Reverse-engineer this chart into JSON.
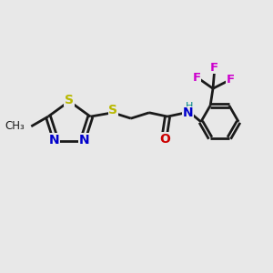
{
  "background_color": "#e8e8e8",
  "bond_color": "#1a1a1a",
  "S_color": "#b8b800",
  "N_color": "#0000cc",
  "O_color": "#cc0000",
  "F_color": "#cc00cc",
  "NH_color": "#008888",
  "line_width": 2.0,
  "figsize": [
    3.0,
    3.0
  ],
  "dpi": 100,
  "xlim": [
    0,
    10
  ],
  "ylim": [
    0,
    10
  ]
}
